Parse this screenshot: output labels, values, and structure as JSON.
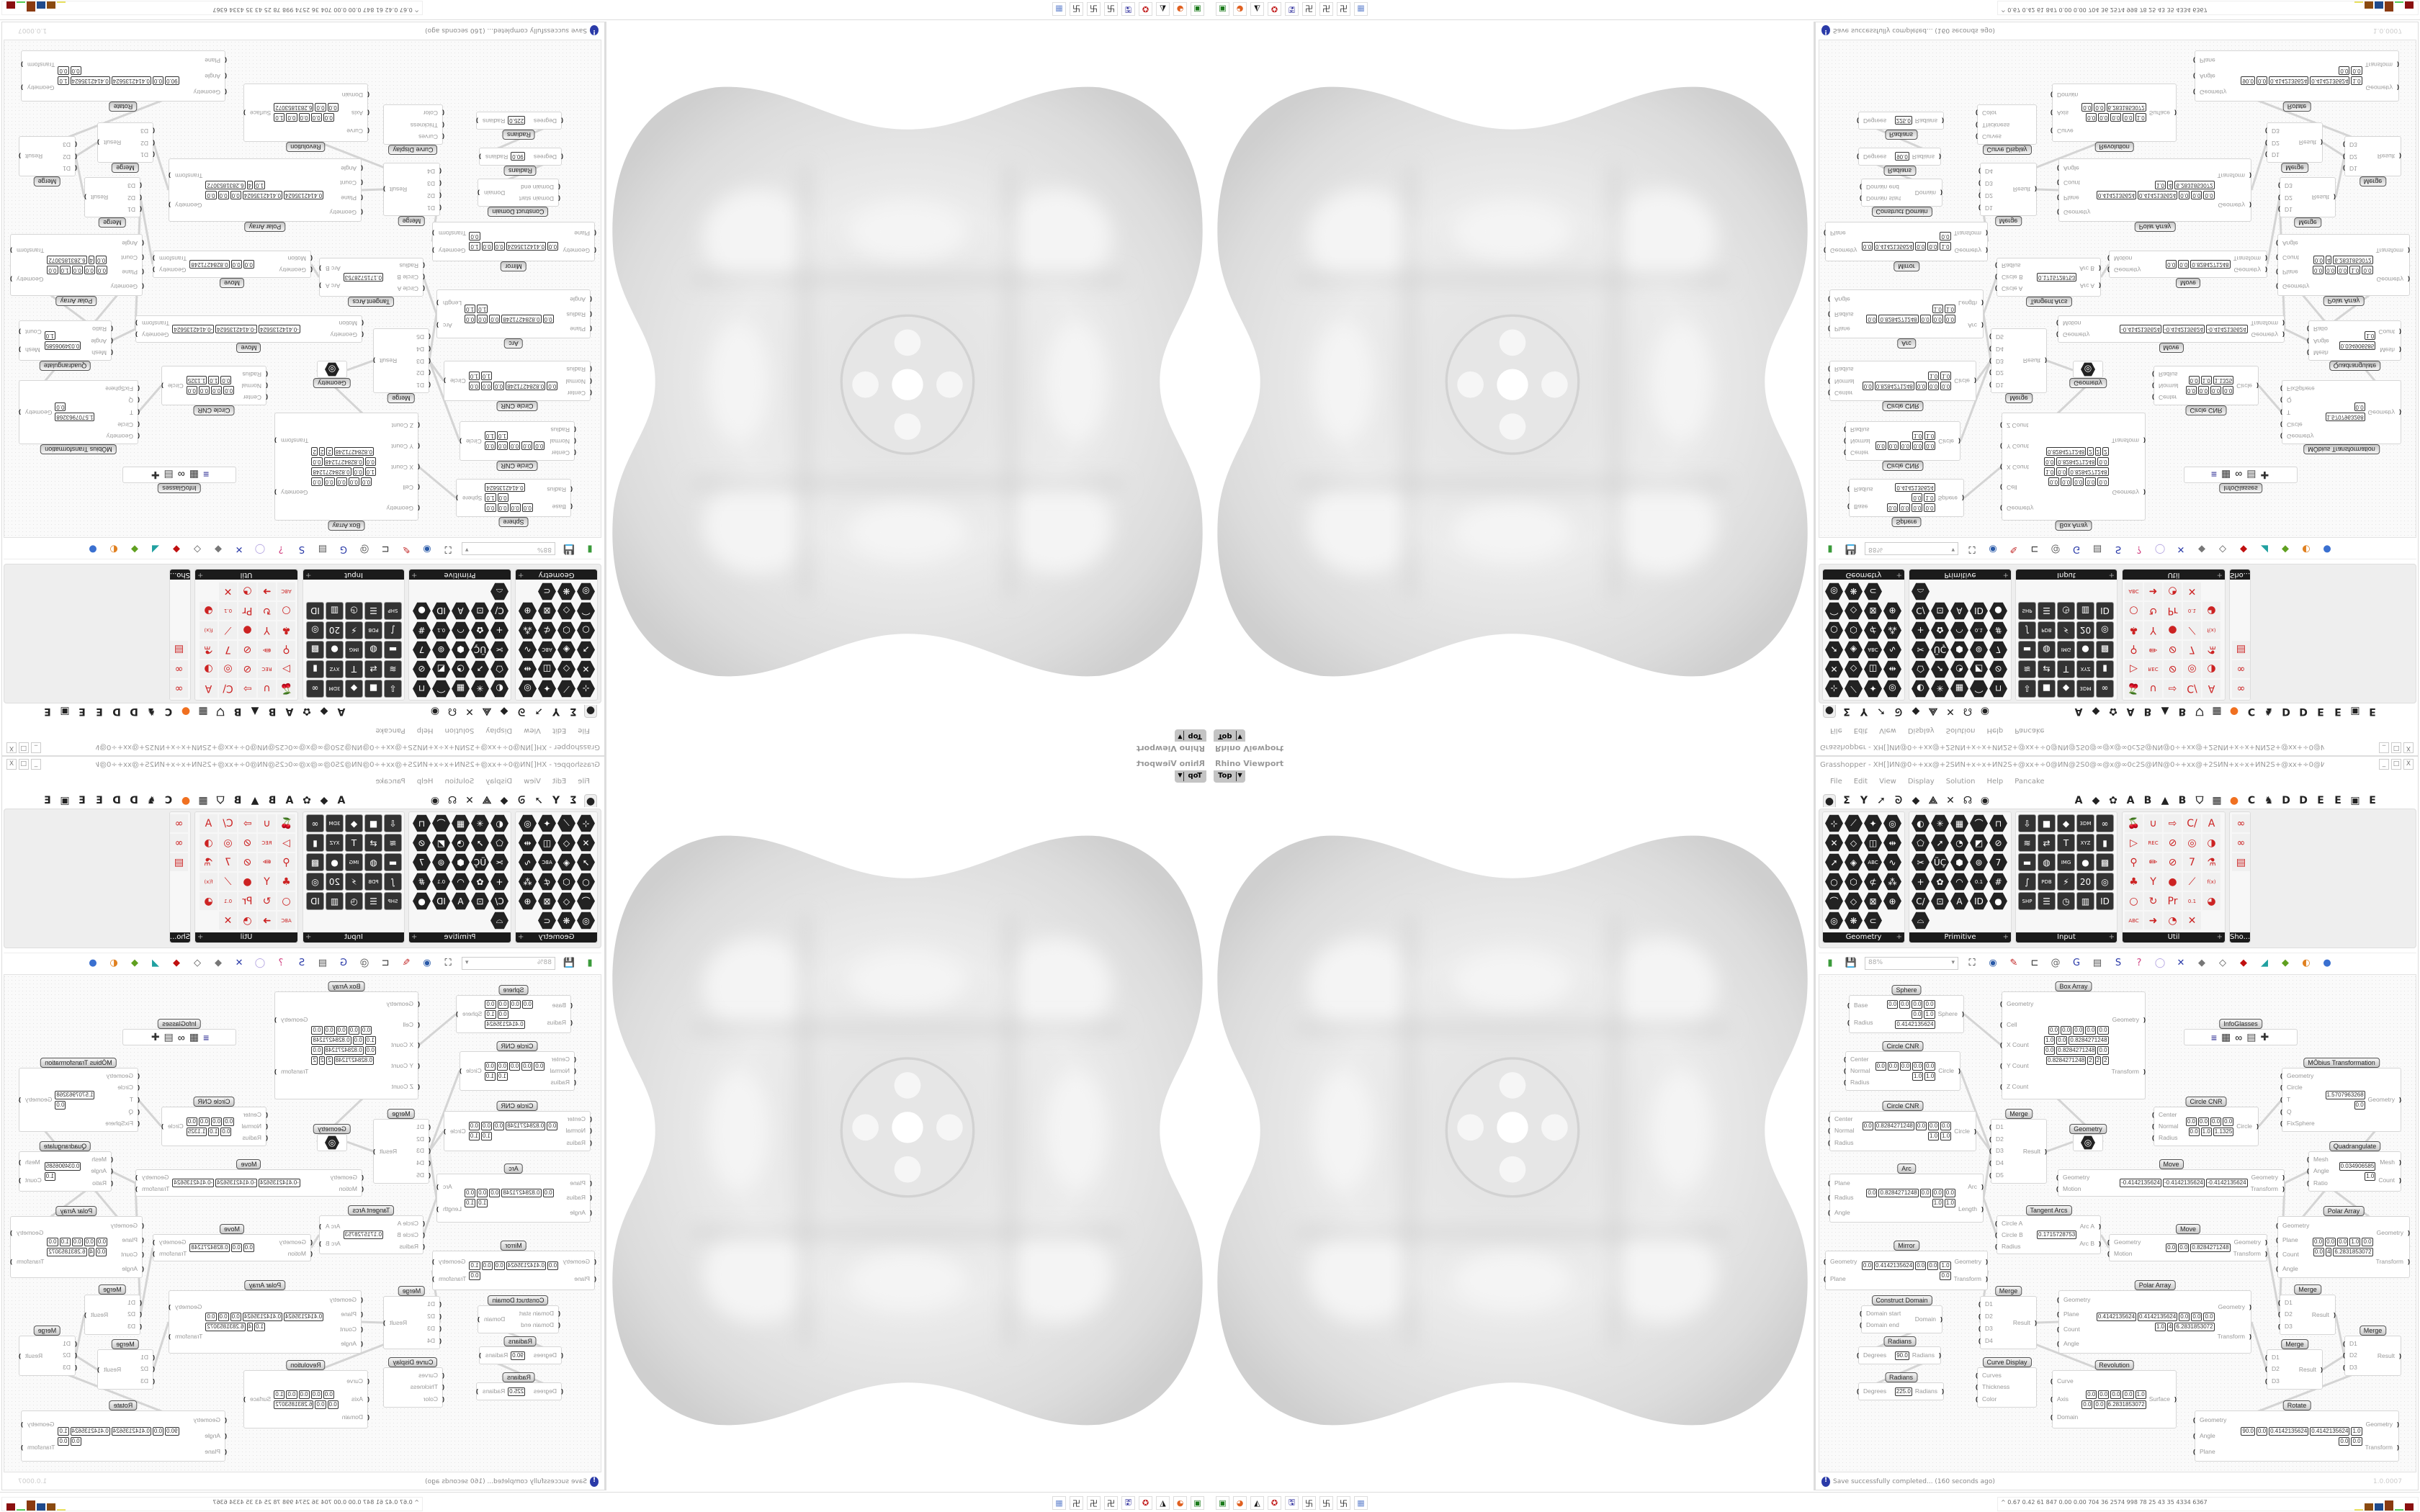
{
  "viewport": {
    "title": "Rhino Viewport",
    "view": "Top",
    "shape_color": "#d9d9d9"
  },
  "grasshopper": {
    "title": "Grasshopper - XH[]ИN@0÷+xx@+2SИN+x÷x+ИN2S+@xx+÷0@ИN@2S0@∞@x@∞0c2S@ИN@0÷+xx@+2SИN+x÷x+ИN2S+@xx+÷0@ИN",
    "window_buttons": [
      "_",
      "□",
      "X"
    ],
    "menu": [
      "File",
      "Edit",
      "View",
      "Display",
      "Solution",
      "Help",
      "Pancake"
    ],
    "tabs": [
      "●",
      "Σ",
      "Y",
      "➚",
      "ᘐ",
      "◆",
      "⟁",
      "✕",
      "☊",
      "◉",
      "A",
      "◆",
      "✿",
      "A",
      "B",
      "▲",
      "B",
      "⛉",
      "▦",
      "●",
      "C",
      "♞",
      "D",
      "D",
      "E",
      "E",
      "▣",
      "E"
    ],
    "ribbon": {
      "panels": [
        {
          "label": "Geometry",
          "icons": [
            "⊹",
            "⟋",
            "✦",
            "◎",
            "✕",
            "◇",
            "◫",
            "⇹",
            "➚",
            "◈",
            "ABC",
            "∿",
            "○",
            "⬡",
            "⊄",
            "⁂",
            "⌒",
            "◇",
            "⊠",
            "⊕",
            "◎",
            "❋",
            "⊂"
          ]
        },
        {
          "label": "Primitive",
          "icons": [
            "◐",
            "✳",
            "▦",
            "⌒",
            "⊓",
            "⬠",
            "➚",
            "◔",
            "◩",
            "⊘",
            "✂",
            "ÜÇ",
            "⬢",
            "⊚",
            "7",
            "+",
            "✿",
            "◠",
            "0.1",
            "#",
            "C/",
            "⊡",
            "A",
            "ID",
            "●",
            "⌓"
          ]
        },
        {
          "label": "Input",
          "icons": [
            "⇩",
            "■",
            "◆",
            "3DM",
            "∞",
            "≋",
            "⇄",
            "T",
            "XYZ",
            "▮",
            "▬",
            "◍",
            "IMG",
            "●",
            "▩",
            "∫",
            "PDB",
            "⚡",
            "20",
            "◎",
            "SHP",
            "☰",
            "◷",
            "▥",
            "ID"
          ]
        },
        {
          "label": "Util",
          "icons": [
            "🍒",
            "∪",
            "⇨",
            "C/",
            "A",
            "▷",
            "REC",
            "⊘",
            "◎",
            "◑",
            "⚲",
            "✏",
            "⊘",
            "7",
            "⚗",
            "♣",
            "Y",
            "●",
            "⟋",
            "f(x)",
            "○",
            "↻",
            "Pr",
            "0.1",
            "◕",
            "ABC",
            "➜",
            "◔",
            "✕"
          ]
        },
        {
          "label": "Sho...",
          "icons": [
            "∞",
            "∞",
            "▤"
          ]
        }
      ]
    },
    "toolbar": {
      "zoom": "88%",
      "icons": [
        "new-file-icon",
        "save-icon",
        "zoom-extents-icon",
        "preview-eye-icon",
        "sketch-icon",
        "bake-icon",
        "cluster-icon",
        "gha-icon",
        "panel-icon",
        "search-icon",
        "help-box-icon",
        "bulb-icon",
        "wire-icon",
        "mesh-preview-icon",
        "wireframe-icon",
        "shaded-icon",
        "surface-icon",
        "normals-icon",
        "material-icon",
        "sphere-icon"
      ]
    },
    "nodes": [
      {
        "title": "Sphere",
        "inputs": [
          "Base",
          "Radius"
        ],
        "outputs": [
          "Sphere"
        ],
        "values": [
          "0.0",
          "0.0",
          "0.0",
          "0.0",
          "0.0",
          "1.0",
          "0.4142135624"
        ]
      },
      {
        "title": "Circle CNR",
        "inputs": [
          "Center",
          "Normal",
          "Radius"
        ],
        "outputs": [
          "Circle"
        ],
        "values": [
          "0.0",
          "0.0",
          "0.0",
          "0.0",
          "0.0",
          "1.0",
          "1.0"
        ]
      },
      {
        "title": "Circle CNR",
        "inputs": [
          "Center",
          "Normal",
          "Radius"
        ],
        "outputs": [
          "Circle"
        ],
        "values": [
          "0.0",
          "0.8284271248",
          "0.0",
          "0.0",
          "0.0",
          "1.0",
          "1.0"
        ]
      },
      {
        "title": "Arc",
        "inputs": [
          "Plane",
          "Radius",
          "Angle"
        ],
        "outputs": [
          "Arc",
          "Length"
        ],
        "values": [
          "0.0",
          "0.8284271248",
          "0.0",
          "0.0",
          "0.0",
          "1.0",
          "1.0"
        ]
      },
      {
        "title": "Box Array",
        "inputs": [
          "Geometry",
          "Cell",
          "X Count",
          "Y Count",
          "Z Count"
        ],
        "outputs": [
          "Geometry",
          "Transform"
        ],
        "values": [
          "0.0",
          "0.0",
          "0.0",
          "0.0",
          "0.0",
          "1.0",
          "0.0",
          "0.8284271248",
          "0.0",
          "0.8284271248",
          "0.0",
          "0.8284271248",
          "2",
          "2",
          "2"
        ]
      },
      {
        "title": "Merge",
        "inputs": [
          "D1",
          "D2",
          "D3",
          "D4",
          "D5"
        ],
        "outputs": [
          "Result"
        ],
        "values": []
      },
      {
        "title": "Geometry",
        "inputs": [
          ""
        ],
        "outputs": [
          ""
        ],
        "values": []
      },
      {
        "title": "Move",
        "inputs": [
          "Geometry",
          "Motion"
        ],
        "outputs": [
          "Geometry",
          "Transform"
        ],
        "values": [
          "-0.4142135624",
          "-0.4142135624",
          "-0.4142135624"
        ]
      },
      {
        "title": "Tangent Arcs",
        "inputs": [
          "Circle A",
          "Circle B",
          "Radius"
        ],
        "outputs": [
          "Arc A",
          "Arc B"
        ],
        "values": [
          "0.1715728753"
        ]
      },
      {
        "title": "Move",
        "inputs": [
          "Geometry",
          "Motion"
        ],
        "outputs": [
          "Geometry",
          "Transform"
        ],
        "values": [
          "0.0",
          "0.0",
          "0.8284271248"
        ]
      },
      {
        "title": "InfoGlasses",
        "inputs": [
          ""
        ],
        "outputs": [],
        "values": []
      },
      {
        "title": "MÖbius Transformation",
        "inputs": [
          "Geometry",
          "Circle",
          "T",
          "Q",
          "FixSphere"
        ],
        "outputs": [
          "Geometry"
        ],
        "values": [
          "1.5707963268",
          "0.0"
        ]
      },
      {
        "title": "Circle CNR",
        "inputs": [
          "Center",
          "Normal",
          "Radius"
        ],
        "outputs": [
          "Circle"
        ],
        "values": [
          "0.0",
          "0.0",
          "0.0",
          "0.0",
          "0.0",
          "1.0",
          "1.1325"
        ]
      },
      {
        "title": "Quadrangulate",
        "inputs": [
          "Mesh",
          "Angle",
          "Ratio"
        ],
        "outputs": [
          "Mesh",
          "Count"
        ],
        "values": [
          "0.034906585",
          "1.0"
        ]
      },
      {
        "title": "Polar Array",
        "inputs": [
          "Geometry",
          "Plane",
          "Count",
          "Angle"
        ],
        "outputs": [
          "Geometry",
          "Transform"
        ],
        "values": [
          "0.0",
          "0.0",
          "0.0",
          "1.0",
          "0.0",
          "0.0",
          "4",
          "6.2831853072"
        ]
      },
      {
        "title": "Mirror",
        "inputs": [
          "Geometry",
          "Plane"
        ],
        "outputs": [
          "Geometry",
          "Transform"
        ],
        "values": [
          "0.0",
          "0.4142135624",
          "0.0",
          "0.0",
          "1.0",
          "0.0"
        ]
      },
      {
        "title": "Construct Domain",
        "inputs": [
          "Domain start",
          "Domain end"
        ],
        "outputs": [
          "Domain"
        ],
        "values": []
      },
      {
        "title": "Radians",
        "inputs": [
          "Degrees"
        ],
        "outputs": [
          "Radians"
        ],
        "values": [
          "90.0"
        ]
      },
      {
        "title": "Radians",
        "inputs": [
          "Degrees"
        ],
        "outputs": [
          "Radians"
        ],
        "values": [
          "225.0"
        ]
      },
      {
        "title": "Merge",
        "inputs": [
          "D1",
          "D2",
          "D3",
          "D4"
        ],
        "outputs": [
          "Result"
        ],
        "values": []
      },
      {
        "title": "Curve Display",
        "inputs": [
          "Curves",
          "Thickness",
          "Color"
        ],
        "outputs": [],
        "values": []
      },
      {
        "title": "Polar Array",
        "inputs": [
          "Geometry",
          "Plane",
          "Count",
          "Angle"
        ],
        "outputs": [
          "Geometry",
          "Transform"
        ],
        "values": [
          "0.4142135624",
          "0.4142135624",
          "0.0",
          "0.0",
          "0.0",
          "1.0",
          "4",
          "6.2831853072"
        ]
      },
      {
        "title": "Revolution",
        "inputs": [
          "Curve",
          "Axis",
          "Domain"
        ],
        "outputs": [
          "Surface"
        ],
        "values": [
          "0.0",
          "0.0",
          "0.0",
          "0.0",
          "1.0",
          "0.0",
          "0.0",
          "6.2831853072"
        ]
      },
      {
        "title": "Merge",
        "inputs": [
          "D1",
          "D2",
          "D3"
        ],
        "outputs": [
          "Result"
        ],
        "values": []
      },
      {
        "title": "Merge",
        "inputs": [
          "D1",
          "D2",
          "D3"
        ],
        "outputs": [
          "Result"
        ],
        "values": []
      },
      {
        "title": "Merge",
        "inputs": [
          "D1",
          "D2",
          "D3"
        ],
        "outputs": [
          "Result"
        ],
        "values": []
      },
      {
        "title": "Rotate",
        "inputs": [
          "Geometry",
          "Angle",
          "Plane"
        ],
        "outputs": [
          "Geometry",
          "Transform"
        ],
        "values": [
          "90.0",
          "0.0",
          "0.4142135624",
          "0.4142135624",
          "1.0",
          "0.0",
          "0.0"
        ]
      }
    ],
    "status": "Save successfully completed... (160 seconds ago)",
    "version": "1.0.0007"
  },
  "taskbar": {
    "apps": [
      "terminal-icon",
      "firefox-icon",
      "inkscape-icon",
      "red-app-icon",
      "floppy-64-icon",
      "app-icon",
      "app-icon",
      "app-icon",
      "calculator-icon"
    ],
    "tray_text": "0.67 0.42  61  847  0.00 0.00  704  36  2574 998  78  25  43  35  4334 6367",
    "tray_colors": [
      "#e8e060",
      "#8a4a10",
      "#1f4a8c",
      "#8a3a10",
      "#55cc55",
      "#8a1010"
    ]
  }
}
